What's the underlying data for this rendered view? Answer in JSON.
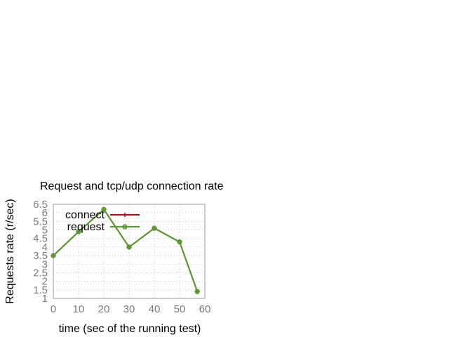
{
  "chart_data": {
    "type": "line",
    "title": "Request and tcp/udp connection rate",
    "xlabel": "time (sec of the running test)",
    "ylabel": "Requests rate (r/sec)",
    "xlim": [
      0,
      60
    ],
    "ylim": [
      1,
      6.5
    ],
    "xticks": [
      "0",
      "10",
      "20",
      "30",
      "40",
      "50",
      "60"
    ],
    "yticks": [
      "1",
      "1.5",
      "2",
      "2.5",
      "3",
      "3.5",
      "4",
      "4.5",
      "5",
      "5.5",
      "6",
      "6.5"
    ],
    "grid": true,
    "legend_position": "top-left",
    "series": [
      {
        "name": "connect",
        "color": "#8b1a1a",
        "marker": "plus",
        "x": [
          0,
          10,
          20,
          30,
          40,
          50,
          57
        ],
        "y": [
          3.5,
          4.9,
          6.2,
          4.0,
          5.1,
          4.3,
          1.4
        ]
      },
      {
        "name": "request",
        "color": "#5a9a32",
        "marker": "circle",
        "x": [
          0,
          10,
          20,
          30,
          40,
          50,
          57
        ],
        "y": [
          3.5,
          4.9,
          6.2,
          4.0,
          5.1,
          4.3,
          1.4
        ]
      }
    ]
  }
}
